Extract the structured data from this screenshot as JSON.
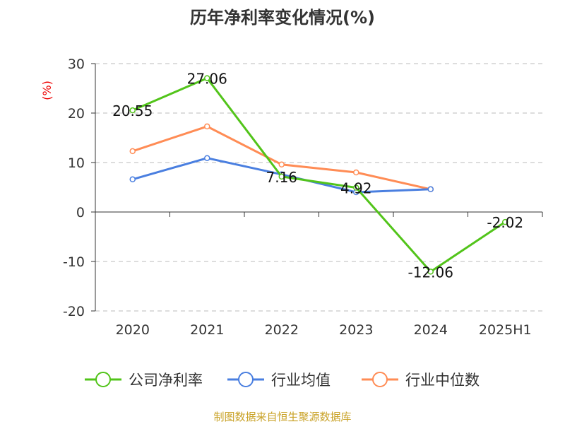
{
  "chart_data": {
    "type": "line",
    "title": "历年净利率变化情况(%)",
    "ylabel": "(%)",
    "xlabel": "",
    "categories": [
      "2020",
      "2021",
      "2022",
      "2023",
      "2024",
      "2025H1"
    ],
    "ylim": [
      -20,
      30
    ],
    "yticks": [
      30,
      20,
      10,
      0,
      -10,
      -20
    ],
    "grid": true,
    "legend_position": "bottom",
    "series": [
      {
        "name": "公司净利率",
        "color": "#52c41a",
        "values": [
          20.55,
          27.06,
          7.16,
          4.92,
          -12.06,
          -2.02
        ],
        "labels": [
          "20.55",
          "27.06",
          "7.16",
          "4.92",
          "-12.06",
          "-2.02"
        ]
      },
      {
        "name": "行业均值",
        "color": "#4a7fe0",
        "values": [
          6.6,
          10.9,
          7.6,
          4.0,
          4.6,
          null
        ]
      },
      {
        "name": "行业中位数",
        "color": "#ff8c55",
        "values": [
          12.3,
          17.3,
          9.6,
          8.0,
          4.6,
          null
        ]
      }
    ]
  },
  "source": "制图数据来自恒生聚源数据库"
}
